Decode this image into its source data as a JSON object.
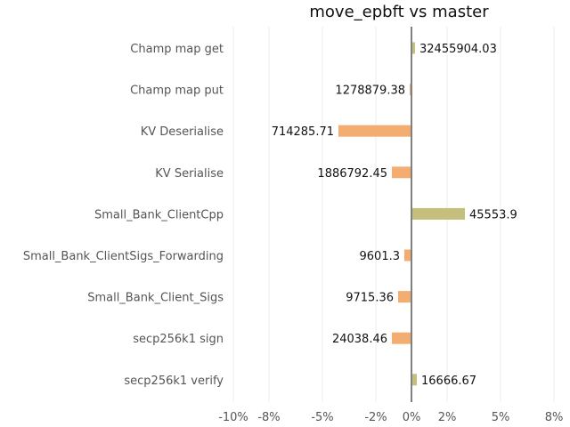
{
  "chart_data": {
    "type": "bar",
    "orientation": "horizontal",
    "title": "move_epbft vs master",
    "xlabel": "",
    "ylabel": "",
    "xlim": [
      -10,
      8
    ],
    "x_ticks": [
      -10,
      -8,
      -5,
      -2,
      0,
      2,
      5,
      8
    ],
    "x_tick_labels": [
      "-10%",
      "-8%",
      "-5%",
      "-2%",
      "0%",
      "2%",
      "5%",
      "8%"
    ],
    "grid": true,
    "categories": [
      "Champ map get",
      "Champ map put",
      "KV Deserialise",
      "KV Serialise",
      "Small_Bank_ClientCpp",
      "Small_Bank_ClientSigs_Forwarding",
      "Small_Bank_Client_Sigs",
      "secp256k1 sign",
      "secp256k1 verify"
    ],
    "values": [
      0.2,
      -0.1,
      -4.1,
      -1.1,
      3.0,
      -0.4,
      -0.75,
      -1.1,
      0.3
    ],
    "data_labels": [
      "32455904.03",
      "1278879.38",
      "714285.71",
      "1886792.45",
      "45553.9",
      "9601.3",
      "9715.36",
      "24038.46",
      "16666.67"
    ],
    "colors": {
      "positive": "#c5be7c",
      "negative": "#f4ad70",
      "zero_line": "#808080",
      "grid": "#ececec"
    }
  }
}
